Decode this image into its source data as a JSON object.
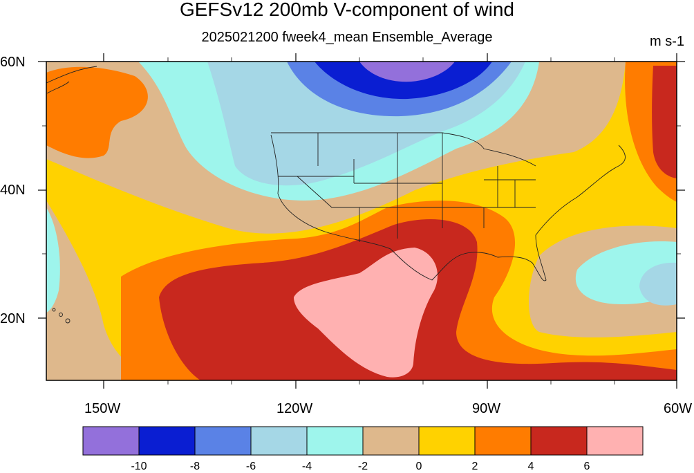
{
  "title": "GEFSv12 200mb V-component of wind",
  "subtitle": "2025021200 fweek4_mean Ensemble_Average",
  "units": "m s-1",
  "lat_labels": [
    "60N",
    "40N",
    "20N"
  ],
  "lon_labels": [
    "150W",
    "120W",
    "90W",
    "60W"
  ],
  "colorbar": {
    "colors": [
      "#9370db",
      "#0a1ed2",
      "#5a82e6",
      "#a5d7e6",
      "#9ef5ec",
      "#deb88c",
      "#ffd200",
      "#ff7c00",
      "#c8281e",
      "#ffb1b1"
    ],
    "labels": [
      "-10",
      "-8",
      "-6",
      "-4",
      "-2",
      "0",
      "2",
      "4",
      "6"
    ]
  }
}
